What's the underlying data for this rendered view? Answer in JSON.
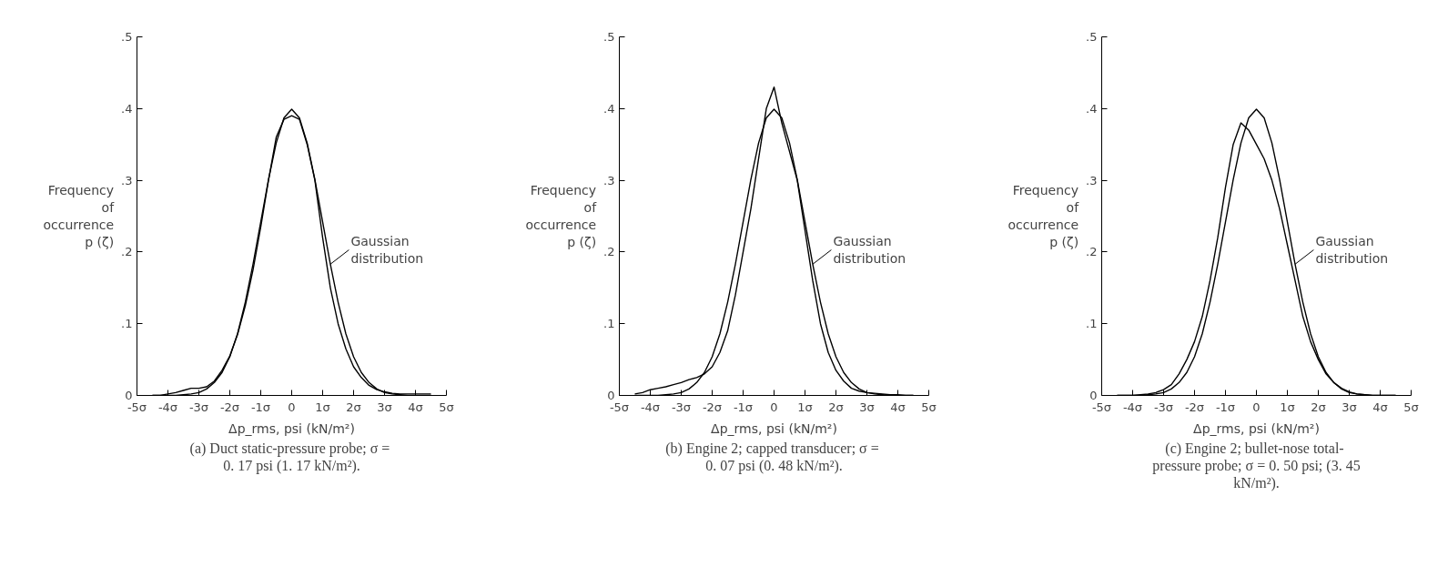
{
  "chart_data": [
    {
      "type": "line",
      "title": "(a)  Duct static-pressure probe; σ = 0. 17 psi (1. 17 kN/m²).",
      "xlabel": "Δp_rms, psi (kN/m²)",
      "ylabel": "Frequency of occurrence p (ζ)",
      "x": [
        -4.5,
        -4.25,
        -4,
        -3.75,
        -3.5,
        -3.25,
        -3,
        -2.75,
        -2.5,
        -2.25,
        -2,
        -1.75,
        -1.5,
        -1.25,
        -1,
        -0.75,
        -0.5,
        -0.25,
        0,
        0.25,
        0.5,
        0.75,
        1,
        1.25,
        1.5,
        1.75,
        2,
        2.25,
        2.5,
        2.75,
        3,
        3.25,
        3.5,
        3.75,
        4,
        4.25,
        4.5
      ],
      "series": [
        {
          "color": "#000000",
          "values": [
            0,
            0,
            0.002,
            0.004,
            0.007,
            0.01,
            0.01,
            0.012,
            0.02,
            0.035,
            0.055,
            0.085,
            0.125,
            0.175,
            0.235,
            0.3,
            0.36,
            0.385,
            0.39,
            0.385,
            0.35,
            0.3,
            0.22,
            0.15,
            0.1,
            0.065,
            0.04,
            0.025,
            0.014,
            0.008,
            0.005,
            0.003,
            0.002,
            0.002,
            0.002,
            0.002,
            0.002
          ]
        },
        {
          "name": "Gaussian distribution",
          "color": "#000000",
          "values": [
            0,
            0,
            0,
            0,
            0.001,
            0.002,
            0.004,
            0.009,
            0.018,
            0.032,
            0.054,
            0.086,
            0.13,
            0.183,
            0.242,
            0.301,
            0.352,
            0.387,
            0.399,
            0.387,
            0.352,
            0.301,
            0.242,
            0.183,
            0.13,
            0.086,
            0.054,
            0.032,
            0.018,
            0.009,
            0.004,
            0.002,
            0.001,
            0,
            0,
            0,
            0
          ]
        }
      ],
      "xlim": [
        -5,
        5
      ],
      "ylim": [
        0,
        0.5
      ],
      "xticks": [
        {
          "value": -5,
          "label": "-5σ"
        },
        {
          "value": -4,
          "label": "-4σ"
        },
        {
          "value": -3,
          "label": "-3σ"
        },
        {
          "value": -2,
          "label": "-2σ"
        },
        {
          "value": -1,
          "label": "-1σ"
        },
        0,
        {
          "value": 1,
          "label": "1σ"
        },
        {
          "value": 2,
          "label": "2σ"
        },
        {
          "value": 3,
          "label": "3σ"
        },
        {
          "value": 4,
          "label": "4σ"
        },
        {
          "value": 5,
          "label": "5σ"
        }
      ],
      "yticks": [
        0,
        {
          "value": 0.1,
          "label": ".1"
        },
        {
          "value": 0.2,
          "label": ".2"
        },
        {
          "value": 0.3,
          "label": ".3"
        },
        {
          "value": 0.4,
          "label": ".4"
        },
        {
          "value": 0.5,
          "label": ".5"
        }
      ]
    },
    {
      "type": "line",
      "title": "(b)  Engine 2; capped transducer; σ = 0. 07 psi (0. 48 kN/m²).",
      "xlabel": "Δp_rms, psi (kN/m²)",
      "ylabel": "Frequency of occurrence p (ζ)",
      "x": [
        -4.5,
        -4.25,
        -4,
        -3.75,
        -3.5,
        -3.25,
        -3,
        -2.75,
        -2.5,
        -2.25,
        -2,
        -1.75,
        -1.5,
        -1.25,
        -1,
        -0.75,
        -0.5,
        -0.25,
        0,
        0.25,
        0.5,
        0.75,
        1,
        1.25,
        1.5,
        1.75,
        2,
        2.25,
        2.5,
        2.75,
        3,
        3.25,
        3.5,
        3.75,
        4,
        4.25,
        4.5
      ],
      "series": [
        {
          "color": "#000000",
          "values": [
            0.002,
            0.004,
            0.008,
            0.01,
            0.012,
            0.015,
            0.018,
            0.022,
            0.025,
            0.03,
            0.04,
            0.06,
            0.09,
            0.14,
            0.2,
            0.26,
            0.33,
            0.4,
            0.43,
            0.38,
            0.34,
            0.3,
            0.23,
            0.16,
            0.1,
            0.06,
            0.035,
            0.02,
            0.01,
            0.006,
            0.004,
            0.003,
            0.002,
            0.001,
            0.001,
            0,
            0
          ]
        },
        {
          "name": "Gaussian distribution",
          "color": "#000000",
          "values": [
            0,
            0,
            0,
            0,
            0.001,
            0.002,
            0.004,
            0.009,
            0.018,
            0.032,
            0.054,
            0.086,
            0.13,
            0.183,
            0.242,
            0.301,
            0.352,
            0.387,
            0.399,
            0.387,
            0.352,
            0.301,
            0.242,
            0.183,
            0.13,
            0.086,
            0.054,
            0.032,
            0.018,
            0.009,
            0.004,
            0.002,
            0.001,
            0,
            0,
            0,
            0
          ]
        }
      ],
      "xlim": [
        -5,
        5
      ],
      "ylim": [
        0,
        0.5
      ],
      "xticks": [
        {
          "value": -5,
          "label": "-5σ"
        },
        {
          "value": -4,
          "label": "-4σ"
        },
        {
          "value": -3,
          "label": "-3σ"
        },
        {
          "value": -2,
          "label": "-2σ"
        },
        {
          "value": -1,
          "label": "-1σ"
        },
        0,
        {
          "value": 1,
          "label": "1σ"
        },
        {
          "value": 2,
          "label": "2σ"
        },
        {
          "value": 3,
          "label": "3σ"
        },
        {
          "value": 4,
          "label": "4σ"
        },
        {
          "value": 5,
          "label": "5σ"
        }
      ],
      "yticks": [
        0,
        {
          "value": 0.1,
          "label": ".1"
        },
        {
          "value": 0.2,
          "label": ".2"
        },
        {
          "value": 0.3,
          "label": ".3"
        },
        {
          "value": 0.4,
          "label": ".4"
        },
        {
          "value": 0.5,
          "label": ".5"
        }
      ]
    },
    {
      "type": "line",
      "title": "(c)  Engine 2; bullet-nose total-pressure probe; σ = 0. 50 psi; (3. 45 kN/m²).",
      "xlabel": "Δp_rms, psi (kN/m²)",
      "ylabel": "Frequency of occurrence p (ζ)",
      "x": [
        -4.5,
        -4.25,
        -4,
        -3.75,
        -3.5,
        -3.25,
        -3,
        -2.75,
        -2.5,
        -2.25,
        -2,
        -1.75,
        -1.5,
        -1.25,
        -1,
        -0.75,
        -0.5,
        -0.25,
        0,
        0.25,
        0.5,
        0.75,
        1,
        1.25,
        1.5,
        1.75,
        2,
        2.25,
        2.5,
        2.75,
        3,
        3.25,
        3.5,
        3.75,
        4,
        4.25,
        4.5
      ],
      "series": [
        {
          "color": "#000000",
          "values": [
            0,
            0,
            0,
            0.001,
            0.002,
            0.004,
            0.008,
            0.015,
            0.03,
            0.05,
            0.075,
            0.11,
            0.16,
            0.22,
            0.29,
            0.35,
            0.38,
            0.37,
            0.35,
            0.33,
            0.3,
            0.26,
            0.21,
            0.16,
            0.11,
            0.075,
            0.05,
            0.03,
            0.018,
            0.01,
            0.005,
            0.002,
            0.001,
            0,
            0,
            0,
            0
          ]
        },
        {
          "name": "Gaussian distribution",
          "color": "#000000",
          "values": [
            0,
            0,
            0,
            0,
            0.001,
            0.002,
            0.004,
            0.009,
            0.018,
            0.032,
            0.054,
            0.086,
            0.13,
            0.183,
            0.242,
            0.301,
            0.352,
            0.387,
            0.399,
            0.387,
            0.352,
            0.301,
            0.242,
            0.183,
            0.13,
            0.086,
            0.054,
            0.032,
            0.018,
            0.009,
            0.004,
            0.002,
            0.001,
            0,
            0,
            0,
            0
          ]
        }
      ],
      "xlim": [
        -5,
        5
      ],
      "ylim": [
        0,
        0.5
      ],
      "xticks": [
        {
          "value": -5,
          "label": "-5σ"
        },
        {
          "value": -4,
          "label": "-4σ"
        },
        {
          "value": -3,
          "label": "-3σ"
        },
        {
          "value": -2,
          "label": "-2σ"
        },
        {
          "value": -1,
          "label": "-1σ"
        },
        0,
        {
          "value": 1,
          "label": "1σ"
        },
        {
          "value": 2,
          "label": "2σ"
        },
        {
          "value": 3,
          "label": "3σ"
        },
        {
          "value": 4,
          "label": "4σ"
        },
        {
          "value": 5,
          "label": "5σ"
        }
      ],
      "yticks": [
        0,
        {
          "value": 0.1,
          "label": ".1"
        },
        {
          "value": 0.2,
          "label": ".2"
        },
        {
          "value": 0.3,
          "label": ".3"
        },
        {
          "value": 0.4,
          "label": ".4"
        },
        {
          "value": 0.5,
          "label": ".5"
        }
      ]
    }
  ]
}
